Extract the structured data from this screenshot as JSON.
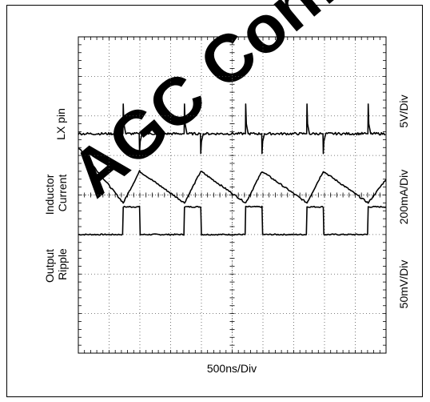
{
  "watermark": {
    "text": "AGC Confident sample",
    "color": "#e6e6e6"
  },
  "chart_data": {
    "type": "line",
    "title": "",
    "xlabel": "500ns/Div",
    "x_divisions": 10,
    "y_divisions": 8,
    "x_unit": "ns",
    "ns_per_div": 500,
    "trace_color": "#000000",
    "grid": "dotted",
    "left_labels": [
      "LX pin",
      "Inductor Current",
      "Output Ripple"
    ],
    "right_labels": [
      "5V/Div",
      "200mA/Div",
      "50mV/Div"
    ],
    "series": [
      {
        "name": "LX pin",
        "scale": "5V/Div",
        "period_div": 1.99,
        "points_div": [
          [
            0.0,
            3.0
          ],
          [
            1.44,
            3.0
          ],
          [
            1.46,
            3.7
          ],
          [
            1.99,
            3.7
          ],
          [
            2.01,
            3.0
          ],
          [
            3.43,
            3.0
          ],
          [
            3.45,
            3.7
          ],
          [
            3.98,
            3.7
          ],
          [
            4.0,
            3.0
          ],
          [
            5.42,
            3.0
          ],
          [
            5.44,
            3.7
          ],
          [
            5.97,
            3.7
          ],
          [
            5.99,
            3.0
          ],
          [
            7.41,
            3.0
          ],
          [
            7.43,
            3.7
          ],
          [
            7.96,
            3.7
          ],
          [
            7.98,
            3.0
          ],
          [
            9.4,
            3.0
          ],
          [
            9.42,
            3.7
          ],
          [
            10.0,
            3.7
          ]
        ]
      },
      {
        "name": "Inductor Current",
        "scale": "200mA/Div",
        "points_div": [
          [
            0.0,
            5.2
          ],
          [
            1.46,
            3.8
          ],
          [
            1.99,
            4.6
          ],
          [
            3.45,
            3.8
          ],
          [
            3.98,
            4.6
          ],
          [
            5.44,
            3.8
          ],
          [
            5.97,
            4.6
          ],
          [
            7.43,
            3.8
          ],
          [
            7.96,
            4.6
          ],
          [
            9.42,
            3.8
          ],
          [
            10.0,
            4.4
          ]
        ]
      },
      {
        "name": "Output Ripple",
        "scale": "50mV/Div",
        "baseline_div": 5.55,
        "spike_up_div": 6.3,
        "spike_down_div": 5.05,
        "spikes_at_div": [
          1.46,
          1.99,
          3.45,
          3.98,
          5.44,
          5.97,
          7.43,
          7.96,
          9.42
        ]
      }
    ]
  }
}
